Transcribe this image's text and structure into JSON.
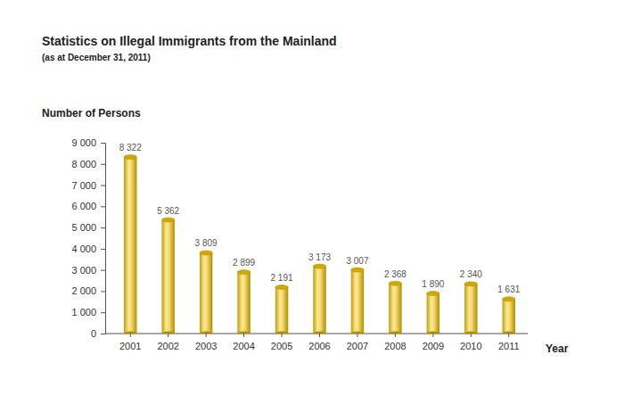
{
  "chart_data": {
    "type": "bar",
    "title": "Statistics on Illegal Immigrants from the Mainland",
    "subtitle": "(as at December 31, 2011)",
    "y_label": "Number of Persons",
    "x_label": "Year",
    "categories": [
      "2001",
      "2002",
      "2003",
      "2004",
      "2005",
      "2006",
      "2007",
      "2008",
      "2009",
      "2010",
      "2011"
    ],
    "values": [
      8322,
      5362,
      3809,
      2899,
      2191,
      3173,
      3007,
      2368,
      1890,
      2340,
      1631
    ],
    "value_labels": [
      "8 322",
      "5 362",
      "3 809",
      "2 899",
      "2 191",
      "3 173",
      "3 007",
      "2 368",
      "1 890",
      "2 340",
      "1 631"
    ],
    "color": "#f2c200",
    "ylim": [
      0,
      9000
    ],
    "yticks": [
      0,
      {
        "value": 1000,
        "label": "1 000"
      },
      {
        "value": 2000,
        "label": "2 000"
      },
      {
        "value": 3000,
        "label": "3 000"
      },
      {
        "value": 4000,
        "label": "4 000"
      },
      {
        "value": 5000,
        "label": "5 000"
      },
      {
        "value": 6000,
        "label": "6 000"
      },
      {
        "value": 7000,
        "label": "7 000"
      },
      {
        "value": 8000,
        "label": "8 000"
      },
      {
        "value": 9000,
        "label": "9 000"
      }
    ],
    "grid": false,
    "data_labels": true
  }
}
